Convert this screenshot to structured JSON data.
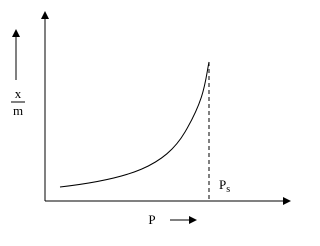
{
  "y_label": {
    "numerator": "x",
    "denominator": "m"
  },
  "x_label": "P",
  "saturation_label": {
    "base": "P",
    "subscript": "s"
  }
}
